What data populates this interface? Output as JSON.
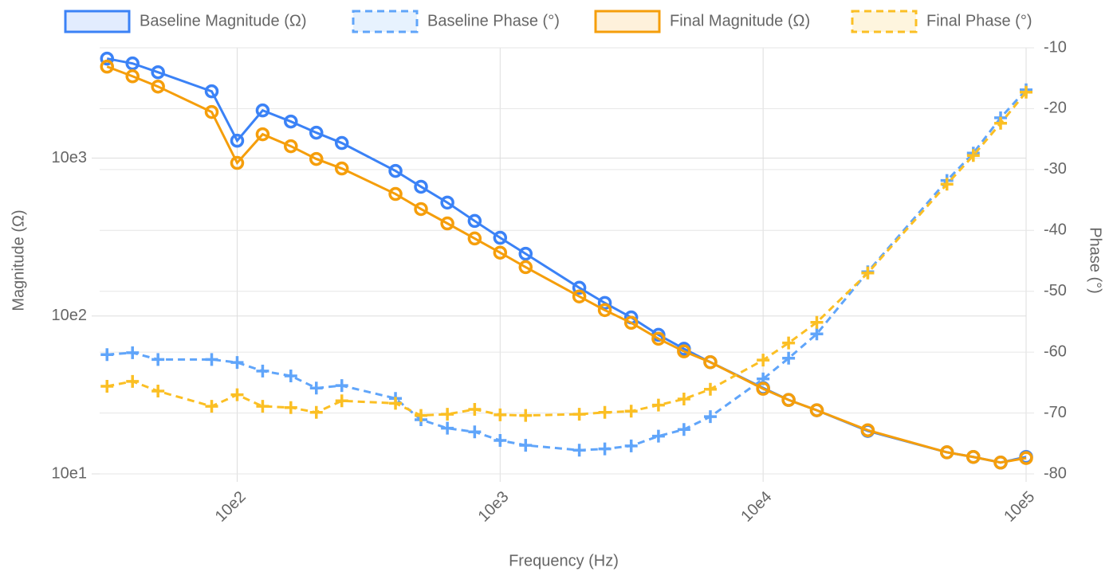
{
  "chart_data": {
    "type": "line",
    "x_label": "Frequency (Hz)",
    "y_label": "Magnitude (Ω)",
    "y2_label": "Phase (°)",
    "x": [
      32,
      40,
      50,
      80,
      100,
      125,
      160,
      200,
      250,
      400,
      500,
      630,
      800,
      1000,
      1250,
      2000,
      2500,
      3150,
      4000,
      5000,
      6300,
      10000,
      12500,
      16000,
      25000,
      50000,
      63000,
      80000,
      100000
    ],
    "xlim": [
      30,
      100000
    ],
    "x_log": true,
    "xticks": [
      {
        "value": 100,
        "label": "10e2"
      },
      {
        "value": 1000,
        "label": "10e3"
      },
      {
        "value": 10000,
        "label": "10e4"
      },
      {
        "value": 100000,
        "label": "10e5"
      }
    ],
    "ylim": [
      10,
      5000
    ],
    "y_log": true,
    "yticks": [
      {
        "value": 10,
        "label": "10e1"
      },
      {
        "value": 100,
        "label": "10e2"
      },
      {
        "value": 1000,
        "label": "10e3"
      }
    ],
    "y2lim": [
      -80,
      -10
    ],
    "y2ticks": [
      -80,
      -70,
      -60,
      -50,
      -40,
      -30,
      -20,
      -10
    ],
    "grid": true,
    "legend": "top",
    "series": [
      {
        "name": "Baseline Magnitude (Ω)",
        "color": "#3b82f6",
        "dashed": false,
        "marker": "circle",
        "values": [
          4270,
          3980,
          3500,
          2650,
          1290,
          2005,
          1706,
          1450,
          1247,
          830,
          659,
          523,
          400,
          313,
          248,
          151,
          121,
          98,
          76,
          62,
          51,
          35,
          29.4,
          25.3,
          18.7,
          13.7,
          12.8,
          11.8,
          12.8
        ]
      },
      {
        "name": "Baseline Phase (°)",
        "color": "#60a5fa",
        "dashed": true,
        "marker": "cross",
        "axis": "y2",
        "values": [
          -60.4,
          -60.1,
          -61.2,
          -61.2,
          -61.7,
          -63.1,
          -63.9,
          -65.9,
          -65.5,
          -67.6,
          -71.1,
          -72.5,
          -73.1,
          -74.5,
          -75.3,
          -76.1,
          -75.9,
          -75.4,
          -73.8,
          -72.7,
          -70.6,
          -64.4,
          -61.0,
          -57.0,
          -46.8,
          -31.8,
          -27.3,
          -21.5,
          -16.9
        ]
      },
      {
        "name": "Final Magnitude (Ω)",
        "color": "#f59e0b",
        "dashed": false,
        "marker": "circle",
        "values": [
          3800,
          3300,
          2840,
          1960,
          933,
          1416,
          1190,
          988,
          860,
          593,
          476,
          386,
          310,
          252,
          204,
          133,
          109,
          90.6,
          71.8,
          59.7,
          51,
          34.6,
          29.4,
          25.3,
          18.9,
          13.7,
          12.8,
          11.8,
          12.6
        ]
      },
      {
        "name": "Final Phase (°)",
        "color": "#fbbf24",
        "dashed": true,
        "marker": "cross",
        "axis": "y2",
        "values": [
          -65.6,
          -64.8,
          -66.4,
          -68.9,
          -67.0,
          -68.9,
          -69.1,
          -69.9,
          -68.0,
          -68.4,
          -70.4,
          -70.2,
          -69.4,
          -70.3,
          -70.4,
          -70.2,
          -69.9,
          -69.7,
          -68.7,
          -67.7,
          -66.1,
          -61.3,
          -58.5,
          -55.1,
          -47.0,
          -32.4,
          -27.7,
          -22.4,
          -17.3
        ]
      }
    ]
  }
}
